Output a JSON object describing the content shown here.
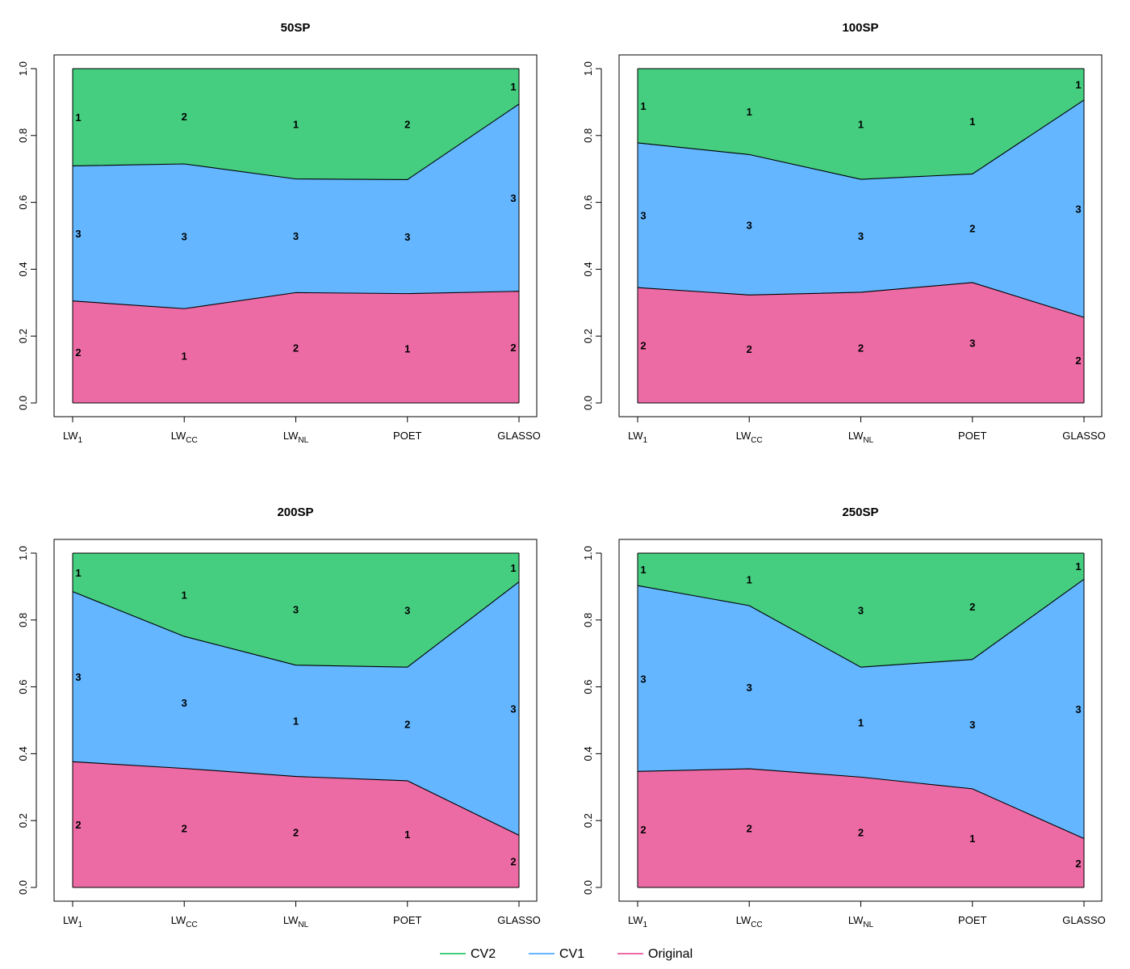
{
  "chart_data": [
    {
      "type": "area",
      "title": "50SP",
      "categories": [
        "LW_1",
        "LW_CC",
        "LW_NL",
        "POET",
        "GLASSO"
      ],
      "ylim": [
        0,
        1
      ],
      "yticks": [
        "0.0",
        "0.2",
        "0.4",
        "0.6",
        "0.8",
        "1.0"
      ],
      "series": [
        {
          "name": "Original",
          "values": [
            0.305,
            0.282,
            0.33,
            0.327,
            0.334
          ],
          "labels": [
            "2",
            "1",
            "2",
            "1",
            "2"
          ]
        },
        {
          "name": "CV1",
          "values": [
            0.404,
            0.433,
            0.34,
            0.341,
            0.56
          ],
          "labels": [
            "3",
            "3",
            "3",
            "3",
            "3"
          ]
        },
        {
          "name": "CV2",
          "values": [
            0.291,
            0.285,
            0.33,
            0.332,
            0.106
          ],
          "labels": [
            "1",
            "2",
            "1",
            "2",
            "1"
          ]
        }
      ]
    },
    {
      "type": "area",
      "title": "100SP",
      "categories": [
        "LW_1",
        "LW_CC",
        "LW_NL",
        "POET",
        "GLASSO"
      ],
      "ylim": [
        0,
        1
      ],
      "yticks": [
        "0.0",
        "0.2",
        "0.4",
        "0.6",
        "0.8",
        "1.0"
      ],
      "series": [
        {
          "name": "Original",
          "values": [
            0.345,
            0.323,
            0.331,
            0.36,
            0.256
          ],
          "labels": [
            "2",
            "2",
            "2",
            "3",
            "2"
          ]
        },
        {
          "name": "CV1",
          "values": [
            0.433,
            0.42,
            0.338,
            0.325,
            0.65
          ],
          "labels": [
            "3",
            "3",
            "3",
            "2",
            "3"
          ]
        },
        {
          "name": "CV2",
          "values": [
            0.222,
            0.257,
            0.331,
            0.315,
            0.094
          ],
          "labels": [
            "1",
            "1",
            "1",
            "1",
            "1"
          ]
        }
      ]
    },
    {
      "type": "area",
      "title": "200SP",
      "categories": [
        "LW_1",
        "LW_CC",
        "LW_NL",
        "POET",
        "GLASSO"
      ],
      "ylim": [
        0,
        1
      ],
      "yticks": [
        "0.0",
        "0.2",
        "0.4",
        "0.6",
        "0.8",
        "1.0"
      ],
      "series": [
        {
          "name": "Original",
          "values": [
            0.376,
            0.356,
            0.332,
            0.319,
            0.156
          ],
          "labels": [
            "2",
            "2",
            "2",
            "1",
            "2"
          ]
        },
        {
          "name": "CV1",
          "values": [
            0.509,
            0.395,
            0.333,
            0.34,
            0.758
          ],
          "labels": [
            "3",
            "3",
            "1",
            "2",
            "3"
          ]
        },
        {
          "name": "CV2",
          "values": [
            0.115,
            0.249,
            0.335,
            0.341,
            0.086
          ],
          "labels": [
            "1",
            "1",
            "3",
            "3",
            "1"
          ]
        }
      ]
    },
    {
      "type": "area",
      "title": "250SP",
      "categories": [
        "LW_1",
        "LW_CC",
        "LW_NL",
        "POET",
        "GLASSO"
      ],
      "ylim": [
        0,
        1
      ],
      "yticks": [
        "0.0",
        "0.2",
        "0.4",
        "0.6",
        "0.8",
        "1.0"
      ],
      "series": [
        {
          "name": "Original",
          "values": [
            0.347,
            0.355,
            0.33,
            0.295,
            0.146
          ],
          "labels": [
            "2",
            "2",
            "2",
            "1",
            "2"
          ]
        },
        {
          "name": "CV1",
          "values": [
            0.556,
            0.488,
            0.329,
            0.387,
            0.776
          ],
          "labels": [
            "3",
            "3",
            "1",
            "3",
            "3"
          ]
        },
        {
          "name": "CV2",
          "values": [
            0.097,
            0.157,
            0.341,
            0.318,
            0.078
          ],
          "labels": [
            "1",
            "1",
            "3",
            "2",
            "1"
          ]
        }
      ]
    }
  ],
  "legend": [
    {
      "name": "CV2",
      "color": "#45CE80"
    },
    {
      "name": "CV1",
      "color": "#63B6FF"
    },
    {
      "name": "Original",
      "color": "#ED6BA5"
    }
  ],
  "colors": {
    "Original": "#ED6BA5",
    "CV1": "#63B6FF",
    "CV2": "#45CE80"
  }
}
